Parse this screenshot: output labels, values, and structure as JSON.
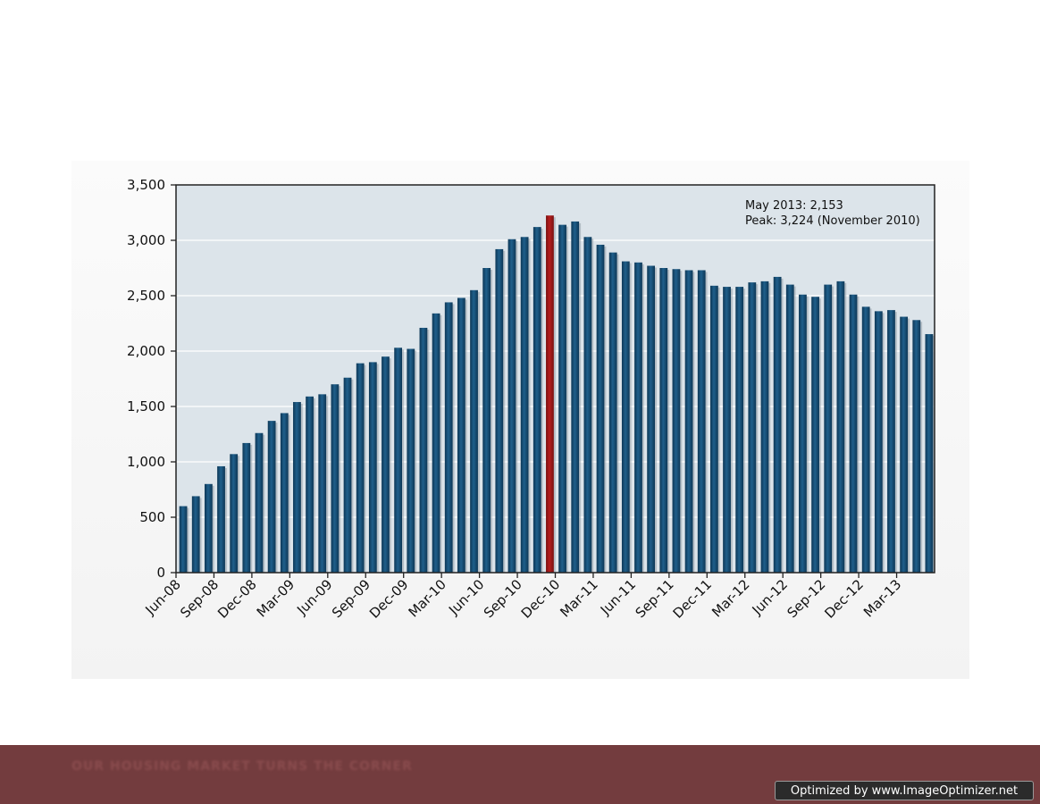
{
  "footer": {
    "caption": "OUR HOUSING MARKET TURNS THE CORNER",
    "watermark": "Optimized by www.ImageOptimizer.net"
  },
  "colors": {
    "bar": "#1f5f8b",
    "bar_dark": "#0d3756",
    "highlight": "#b51e1e",
    "plot_bg": "#dce4ea",
    "grid": "#ffffff",
    "footer_bg": "#733c3e"
  },
  "chart_data": {
    "type": "bar",
    "title": "",
    "xlabel": "",
    "ylabel": "",
    "ylim": [
      0,
      3500
    ],
    "yticks": [
      0,
      500,
      1000,
      1500,
      2000,
      2500,
      3000,
      3500
    ],
    "ytick_labels": [
      "0",
      "500",
      "1,000",
      "1,500",
      "2,000",
      "2,500",
      "3,000",
      "3,500"
    ],
    "xtick_labels": [
      {
        "label": "Jun-08",
        "index": 0
      },
      {
        "label": "Sep-08",
        "index": 3
      },
      {
        "label": "Dec-08",
        "index": 6
      },
      {
        "label": "Mar-09",
        "index": 9
      },
      {
        "label": "Jun-09",
        "index": 12
      },
      {
        "label": "Sep-09",
        "index": 15
      },
      {
        "label": "Dec-09",
        "index": 18
      },
      {
        "label": "Mar-10",
        "index": 21
      },
      {
        "label": "Jun-10",
        "index": 24
      },
      {
        "label": "Sep-10",
        "index": 27
      },
      {
        "label": "Dec-10",
        "index": 30
      },
      {
        "label": "Mar-11",
        "index": 33
      },
      {
        "label": "Jun-11",
        "index": 36
      },
      {
        "label": "Sep-11",
        "index": 39
      },
      {
        "label": "Dec-11",
        "index": 42
      },
      {
        "label": "Mar-12",
        "index": 45
      },
      {
        "label": "Jun-12",
        "index": 48
      },
      {
        "label": "Sep-12",
        "index": 51
      },
      {
        "label": "Dec-12",
        "index": 54
      },
      {
        "label": "Mar-13",
        "index": 57
      }
    ],
    "highlight_index": 29,
    "annotations": [
      "May 2013: 2,153",
      "Peak: 3,224 (November 2010)"
    ],
    "grid": true,
    "legend": false,
    "values": [
      600,
      690,
      800,
      960,
      1070,
      1170,
      1260,
      1370,
      1440,
      1540,
      1590,
      1610,
      1700,
      1760,
      1890,
      1900,
      1950,
      2030,
      2020,
      2210,
      2340,
      2440,
      2480,
      2550,
      2750,
      2920,
      3010,
      3030,
      3120,
      3224,
      3140,
      3170,
      3030,
      2960,
      2890,
      2810,
      2800,
      2770,
      2750,
      2740,
      2730,
      2730,
      2590,
      2580,
      2580,
      2620,
      2630,
      2670,
      2600,
      2510,
      2490,
      2600,
      2630,
      2510,
      2400,
      2360,
      2370,
      2310,
      2280,
      2153
    ]
  }
}
